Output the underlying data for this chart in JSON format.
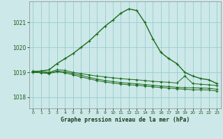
{
  "title": "Graphe pression niveau de la mer (hPa)",
  "background_color": "#cce8e8",
  "grid_color": "#99cccc",
  "line_color": "#1a6b1a",
  "xlim": [
    -0.5,
    23.5
  ],
  "ylim": [
    1017.55,
    1021.85
  ],
  "yticks": [
    1018,
    1019,
    1020,
    1021
  ],
  "xticks": [
    0,
    1,
    2,
    3,
    4,
    5,
    6,
    7,
    8,
    9,
    10,
    11,
    12,
    13,
    14,
    15,
    16,
    17,
    18,
    19,
    20,
    21,
    22,
    23
  ],
  "series": [
    {
      "x": [
        0,
        1,
        2,
        3,
        4,
        5,
        6,
        7,
        8,
        9,
        10,
        11,
        12,
        13,
        14,
        15,
        16,
        17,
        18,
        19,
        20,
        21,
        22,
        23
      ],
      "y": [
        1019.0,
        1019.05,
        1019.1,
        1019.35,
        1019.55,
        1019.75,
        1020.0,
        1020.25,
        1020.55,
        1020.85,
        1021.1,
        1021.38,
        1021.55,
        1021.48,
        1021.0,
        1020.35,
        1019.8,
        1019.55,
        1019.35,
        1019.0,
        1018.85,
        1018.75,
        1018.7,
        1018.55
      ],
      "marker": "+",
      "markersize": 3.5,
      "linewidth": 1.0
    },
    {
      "x": [
        0,
        1,
        2,
        3,
        4,
        5,
        6,
        7,
        8,
        9,
        10,
        11,
        12,
        13,
        14,
        15,
        16,
        17,
        18,
        19,
        20,
        21,
        22,
        23
      ],
      "y": [
        1019.05,
        1019.05,
        1019.0,
        1019.1,
        1019.08,
        1019.0,
        1018.95,
        1018.9,
        1018.85,
        1018.82,
        1018.78,
        1018.75,
        1018.72,
        1018.7,
        1018.67,
        1018.64,
        1018.62,
        1018.6,
        1018.57,
        1018.85,
        1018.55,
        1018.52,
        1018.5,
        1018.47
      ],
      "marker": "+",
      "markersize": 2.5,
      "linewidth": 0.7
    },
    {
      "x": [
        0,
        1,
        2,
        3,
        4,
        5,
        6,
        7,
        8,
        9,
        10,
        11,
        12,
        13,
        14,
        15,
        16,
        17,
        18,
        19,
        20,
        21,
        22,
        23
      ],
      "y": [
        1019.02,
        1019.0,
        1018.97,
        1019.05,
        1019.02,
        1018.95,
        1018.88,
        1018.8,
        1018.73,
        1018.67,
        1018.63,
        1018.59,
        1018.56,
        1018.54,
        1018.51,
        1018.48,
        1018.45,
        1018.43,
        1018.4,
        1018.38,
        1018.38,
        1018.37,
        1018.36,
        1018.32
      ],
      "marker": "+",
      "markersize": 2.5,
      "linewidth": 0.7
    },
    {
      "x": [
        0,
        1,
        2,
        3,
        4,
        5,
        6,
        7,
        8,
        9,
        10,
        11,
        12,
        13,
        14,
        15,
        16,
        17,
        18,
        19,
        20,
        21,
        22,
        23
      ],
      "y": [
        1019.0,
        1018.98,
        1018.95,
        1019.02,
        1018.98,
        1018.9,
        1018.82,
        1018.74,
        1018.67,
        1018.61,
        1018.57,
        1018.53,
        1018.5,
        1018.48,
        1018.45,
        1018.42,
        1018.39,
        1018.37,
        1018.34,
        1018.32,
        1018.3,
        1018.3,
        1018.29,
        1018.25
      ],
      "marker": "+",
      "markersize": 2.5,
      "linewidth": 0.7
    }
  ]
}
